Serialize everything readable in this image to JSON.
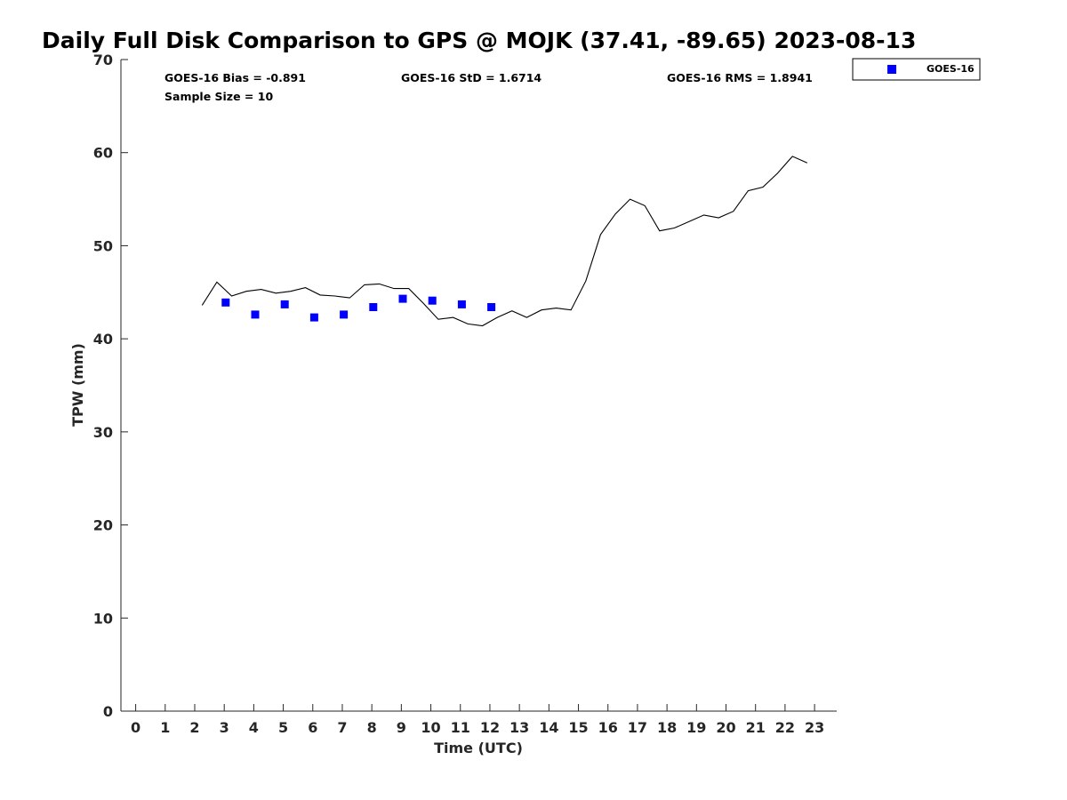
{
  "chart_data": {
    "type": "scatter",
    "title": "Daily Full Disk Comparison to GPS @ MOJK (37.41, -89.65) 2023-08-13",
    "xlabel": "Time (UTC)",
    "ylabel": "TPW (mm)",
    "xlim": [
      -0.5,
      23.75
    ],
    "ylim": [
      0,
      70
    ],
    "xticks": [
      0,
      1,
      2,
      3,
      4,
      5,
      6,
      7,
      8,
      9,
      10,
      11,
      12,
      13,
      14,
      15,
      16,
      17,
      18,
      19,
      20,
      21,
      22,
      23
    ],
    "yticks": [
      0,
      10,
      20,
      30,
      40,
      50,
      60,
      70
    ],
    "grid": false,
    "legend": {
      "position": "top-right, outside plot",
      "entries": [
        "GOES-16"
      ]
    },
    "stats": {
      "bias": "GOES-16 Bias = -0.891",
      "std": "GOES-16 StD = 1.6714",
      "rms": "GOES-16 RMS = 1.8941",
      "sample": "Sample Size = 10"
    },
    "series": [
      {
        "kind": "line",
        "color": "#000000",
        "x": [
          2.25,
          2.75,
          3.25,
          3.75,
          4.25,
          4.75,
          5.25,
          5.75,
          6.25,
          6.75,
          7.25,
          7.75,
          8.25,
          8.75,
          9.25,
          9.75,
          10.25,
          10.75,
          11.25,
          11.75,
          12.25,
          12.75,
          13.25,
          13.75,
          14.25,
          14.75,
          15.25,
          15.75,
          16.25,
          16.75,
          17.25,
          17.75,
          18.25,
          18.75,
          19.25,
          19.75,
          20.25,
          20.75,
          21.25,
          21.75,
          22.25,
          22.75
        ],
        "y": [
          43.6,
          46.1,
          44.6,
          45.1,
          45.3,
          44.9,
          45.1,
          45.5,
          44.7,
          44.6,
          44.4,
          45.8,
          45.9,
          45.4,
          45.4,
          43.8,
          42.1,
          42.3,
          41.6,
          41.4,
          42.3,
          43.0,
          42.3,
          43.1,
          43.3,
          43.1,
          46.2,
          51.2,
          53.4,
          55.0,
          54.3,
          51.6,
          51.9,
          52.6,
          53.3,
          53.0,
          53.7,
          55.9,
          56.3,
          57.8,
          59.6,
          58.9
        ]
      },
      {
        "name": "GOES-16",
        "kind": "scatter",
        "color": "#0000ff",
        "marker": "square",
        "x": [
          3.05,
          4.05,
          5.05,
          6.05,
          7.05,
          8.05,
          9.05,
          10.05,
          11.05,
          12.05
        ],
        "y": [
          43.9,
          42.6,
          43.7,
          42.3,
          42.6,
          43.4,
          44.3,
          44.1,
          43.7,
          43.4
        ]
      }
    ]
  }
}
